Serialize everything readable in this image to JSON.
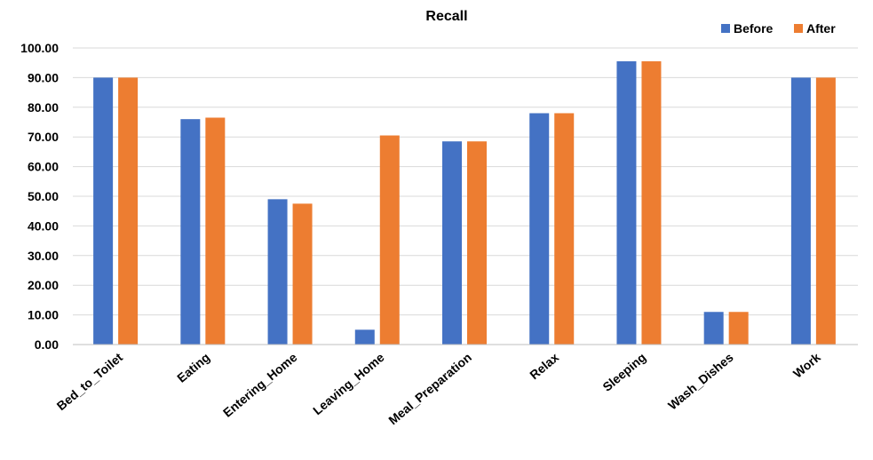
{
  "chart_data": {
    "type": "bar",
    "title": "Recall",
    "xlabel": "",
    "ylabel": "",
    "ylim": [
      0,
      100
    ],
    "ytick_step": 10,
    "ytick_labels": [
      "0.00",
      "10.00",
      "20.00",
      "30.00",
      "40.00",
      "50.00",
      "60.00",
      "70.00",
      "80.00",
      "90.00",
      "100.00"
    ],
    "categories": [
      "Bed_to_Toilet",
      "Eating",
      "Entering_Home",
      "Leaving_Home",
      "Meal_Preparation",
      "Relax",
      "Sleeping",
      "Wash_Dishes",
      "Work"
    ],
    "series": [
      {
        "name": "Before",
        "color": "#4472C4",
        "values": [
          90.0,
          76.0,
          49.0,
          5.0,
          68.5,
          78.0,
          95.5,
          11.0,
          90.0
        ]
      },
      {
        "name": "After",
        "color": "#ED7D31",
        "values": [
          90.0,
          76.5,
          47.5,
          70.5,
          68.5,
          78.0,
          95.5,
          11.0,
          90.0
        ]
      }
    ],
    "grid": true,
    "legend_position": "top-right"
  }
}
